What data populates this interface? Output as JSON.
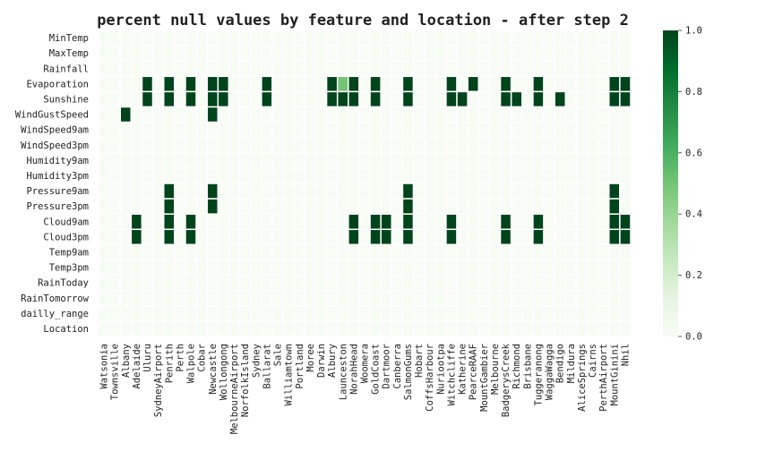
{
  "chart_data": {
    "type": "heatmap",
    "title": "percent null values by feature and location - after step 2",
    "xlabel": "",
    "ylabel": "",
    "y_categories": [
      "MinTemp",
      "MaxTemp",
      "Rainfall",
      "Evaporation",
      "Sunshine",
      "WindGustSpeed",
      "WindSpeed9am",
      "WindSpeed3pm",
      "Humidity9am",
      "Humidity3pm",
      "Pressure9am",
      "Pressure3pm",
      "Cloud9am",
      "Cloud3pm",
      "Temp9am",
      "Temp3pm",
      "RainToday",
      "RainTomorrow",
      "dailly_range",
      "Location"
    ],
    "x_categories": [
      "Watsonia",
      "Townsville",
      "Albany",
      "Adelaide",
      "Uluru",
      "SydneyAirport",
      "Penrith",
      "Perth",
      "Walpole",
      "Cobar",
      "Newcastle",
      "Wollongong",
      "MelbourneAirport",
      "NorfolkIsland",
      "Sydney",
      "Ballarat",
      "Sale",
      "Williamtown",
      "Portland",
      "Moree",
      "Darwin",
      "Albury",
      "Launceston",
      "NorahHead",
      "Woomera",
      "GoldCoast",
      "Dartmoor",
      "Canberra",
      "SalmonGums",
      "Hobart",
      "CoffsHarbour",
      "Nuriootpa",
      "Witchcliffe",
      "Katherine",
      "PearceRAAF",
      "MountGambier",
      "Melbourne",
      "BadgerysCreek",
      "Richmond",
      "Brisbane",
      "Tuggeranong",
      "WaggaWagga",
      "Bendigo",
      "Mildura",
      "AliceSprings",
      "Cairns",
      "PerthAirport",
      "MountGinini",
      "Nhil"
    ],
    "x_tick_labels": [
      "Watsonia",
      "Townsville",
      "Albany",
      "Adelaide",
      "Uluru",
      "SydneyAirport",
      "Penrith",
      "Perth",
      "Walpole",
      "Cobar",
      "Newcastle",
      "Wollongong",
      "MelbourneAirport",
      "NorfolkIsland",
      "Sydney",
      "Ballarat",
      "Sale",
      "Williamtown",
      "Portland",
      "Moree",
      "Darwin",
      "Albury",
      "Launceston",
      "NorahHead",
      "Woomera",
      "GoldCoast",
      "Dartmoor",
      "Canberra",
      "SalmonGums",
      "Hobart",
      "CoffsHarbour",
      "Nuriootpa",
      "Witchcliffe",
      "Katherine",
      "PearceRAAF",
      "MountGambier",
      "Melbourne",
      "BadgerysCreek",
      "Richmond",
      "Brisbane",
      "Tuggeranong",
      "WaggaWagga",
      "Bendigo",
      "Mildura",
      "AliceSprings",
      "Cairns",
      "PerthAirport",
      "MountGinini",
      "Nhil"
    ],
    "values": [
      [
        0,
        0,
        0,
        0,
        0,
        0,
        0,
        0,
        0,
        0,
        0,
        0,
        0,
        0,
        0,
        0,
        0,
        0,
        0,
        0,
        0,
        0,
        0,
        0,
        0,
        0,
        0,
        0,
        0,
        0,
        0,
        0,
        0,
        0,
        0,
        0,
        0,
        0,
        0,
        0,
        0,
        0,
        0,
        0,
        0,
        0,
        0,
        0,
        0
      ],
      [
        0,
        0,
        0,
        0,
        0,
        0,
        0,
        0,
        0,
        0,
        0,
        0,
        0,
        0,
        0,
        0,
        0,
        0,
        0,
        0,
        0,
        0,
        0,
        0,
        0,
        0,
        0,
        0,
        0,
        0,
        0,
        0,
        0,
        0,
        0,
        0,
        0,
        0,
        0,
        0,
        0,
        0,
        0,
        0,
        0,
        0,
        0,
        0,
        0
      ],
      [
        0,
        0,
        0,
        0,
        0,
        0,
        0,
        0,
        0,
        0,
        0,
        0,
        0,
        0,
        0,
        0,
        0,
        0,
        0,
        0,
        0,
        0,
        0,
        0,
        0,
        0,
        0,
        0,
        0,
        0,
        0,
        0,
        0,
        0,
        0,
        0,
        0,
        0,
        0,
        0,
        0,
        0,
        0,
        0,
        0,
        0,
        0,
        0,
        0
      ],
      [
        0,
        0,
        0,
        0,
        1,
        0,
        1,
        0,
        1,
        0,
        1,
        1,
        0,
        0,
        0,
        1,
        0,
        0,
        0,
        0,
        0,
        1,
        0.5,
        1,
        0,
        1,
        0,
        0,
        1,
        0,
        0,
        0,
        1,
        0,
        1,
        0,
        0,
        1,
        0,
        0,
        1,
        0,
        0,
        0,
        0,
        0,
        0,
        1,
        1
      ],
      [
        0,
        0,
        0,
        0,
        1,
        0,
        1,
        0,
        1,
        0,
        1,
        1,
        0,
        0,
        0,
        1,
        0,
        0,
        0,
        0,
        0,
        1,
        1,
        1,
        0,
        1,
        0,
        0,
        1,
        0,
        0,
        0,
        1,
        1,
        0,
        0,
        0,
        1,
        1,
        0,
        1,
        0,
        1,
        0,
        0,
        0,
        0,
        1,
        1
      ],
      [
        0,
        0,
        1,
        0,
        0,
        0,
        0,
        0,
        0,
        0,
        1,
        0,
        0,
        0,
        0,
        0,
        0,
        0,
        0,
        0,
        0,
        0,
        0,
        0,
        0,
        0,
        0,
        0,
        0,
        0,
        0,
        0,
        0,
        0,
        0,
        0,
        0,
        0,
        0,
        0,
        0,
        0,
        0,
        0,
        0,
        0,
        0,
        0,
        0
      ],
      [
        0,
        0,
        0,
        0,
        0,
        0,
        0,
        0,
        0,
        0,
        0,
        0,
        0,
        0,
        0,
        0,
        0,
        0,
        0,
        0,
        0,
        0,
        0,
        0,
        0,
        0,
        0,
        0,
        0,
        0,
        0,
        0,
        0,
        0,
        0,
        0,
        0,
        0,
        0,
        0,
        0,
        0,
        0,
        0,
        0,
        0,
        0,
        0,
        0
      ],
      [
        0,
        0,
        0,
        0,
        0,
        0,
        0,
        0,
        0,
        0,
        0,
        0,
        0,
        0,
        0,
        0,
        0,
        0,
        0,
        0,
        0,
        0,
        0,
        0,
        0,
        0,
        0,
        0,
        0,
        0,
        0,
        0,
        0,
        0,
        0,
        0,
        0,
        0,
        0,
        0,
        0,
        0,
        0,
        0,
        0,
        0,
        0,
        0,
        0
      ],
      [
        0,
        0,
        0,
        0,
        0,
        0,
        0,
        0,
        0,
        0,
        0,
        0,
        0,
        0,
        0,
        0,
        0,
        0,
        0,
        0,
        0,
        0,
        0,
        0,
        0,
        0,
        0,
        0,
        0,
        0,
        0,
        0,
        0,
        0,
        0,
        0,
        0,
        0,
        0,
        0,
        0,
        0,
        0,
        0,
        0,
        0,
        0,
        0,
        0
      ],
      [
        0,
        0,
        0,
        0,
        0,
        0,
        0,
        0,
        0,
        0,
        0,
        0,
        0,
        0,
        0,
        0,
        0,
        0,
        0,
        0,
        0,
        0,
        0,
        0,
        0,
        0,
        0,
        0,
        0,
        0,
        0,
        0,
        0,
        0,
        0,
        0,
        0,
        0,
        0,
        0,
        0,
        0,
        0,
        0,
        0,
        0,
        0,
        0,
        0
      ],
      [
        0,
        0,
        0,
        0,
        0,
        0,
        1,
        0,
        0,
        0,
        1,
        0,
        0,
        0,
        0,
        0,
        0,
        0,
        0,
        0,
        0,
        0,
        0,
        0,
        0,
        0,
        0,
        0,
        1,
        0,
        0,
        0,
        0,
        0,
        0,
        0,
        0,
        0,
        0,
        0,
        0,
        0,
        0,
        0,
        0,
        0,
        0,
        1,
        0
      ],
      [
        0,
        0,
        0,
        0,
        0,
        0,
        1,
        0,
        0,
        0,
        1,
        0,
        0,
        0,
        0,
        0,
        0,
        0,
        0,
        0,
        0,
        0,
        0,
        0,
        0,
        0,
        0,
        0,
        1,
        0,
        0,
        0,
        0,
        0,
        0,
        0,
        0,
        0,
        0,
        0,
        0,
        0,
        0,
        0,
        0,
        0,
        0,
        1,
        0
      ],
      [
        0,
        0,
        0,
        1,
        0,
        0,
        1,
        0,
        1,
        0,
        0,
        0,
        0,
        0,
        0,
        0,
        0,
        0,
        0,
        0,
        0,
        0,
        0,
        1,
        0,
        1,
        1,
        0,
        1,
        0,
        0,
        0,
        1,
        0,
        0,
        0,
        0,
        1,
        0,
        0,
        1,
        0,
        0,
        0,
        0,
        0,
        0,
        1,
        1
      ],
      [
        0,
        0,
        0,
        1,
        0,
        0,
        1,
        0,
        1,
        0,
        0,
        0,
        0,
        0,
        0,
        0,
        0,
        0,
        0,
        0,
        0,
        0,
        0,
        1,
        0,
        1,
        1,
        0,
        1,
        0,
        0,
        0,
        1,
        0,
        0,
        0,
        0,
        1,
        0,
        0,
        1,
        0,
        0,
        0,
        0,
        0,
        0,
        1,
        1
      ],
      [
        0,
        0,
        0,
        0,
        0,
        0,
        0,
        0,
        0,
        0,
        0,
        0,
        0,
        0,
        0,
        0,
        0,
        0,
        0,
        0,
        0,
        0,
        0,
        0,
        0,
        0,
        0,
        0,
        0,
        0,
        0,
        0,
        0,
        0,
        0,
        0,
        0,
        0,
        0,
        0,
        0,
        0,
        0,
        0,
        0,
        0,
        0,
        0,
        0
      ],
      [
        0,
        0,
        0,
        0,
        0,
        0,
        0,
        0,
        0,
        0,
        0,
        0,
        0,
        0,
        0,
        0,
        0,
        0,
        0,
        0,
        0,
        0,
        0,
        0,
        0,
        0,
        0,
        0,
        0,
        0,
        0,
        0,
        0,
        0,
        0,
        0,
        0,
        0,
        0,
        0,
        0,
        0,
        0,
        0,
        0,
        0,
        0,
        0,
        0
      ],
      [
        0,
        0,
        0,
        0,
        0,
        0,
        0,
        0,
        0,
        0,
        0,
        0,
        0,
        0,
        0,
        0,
        0,
        0,
        0,
        0,
        0,
        0,
        0,
        0,
        0,
        0,
        0,
        0,
        0,
        0,
        0,
        0,
        0,
        0,
        0,
        0,
        0,
        0,
        0,
        0,
        0,
        0,
        0,
        0,
        0,
        0,
        0,
        0,
        0
      ],
      [
        0,
        0,
        0,
        0,
        0,
        0,
        0,
        0,
        0,
        0,
        0,
        0,
        0,
        0,
        0,
        0,
        0,
        0,
        0,
        0,
        0,
        0,
        0,
        0,
        0,
        0,
        0,
        0,
        0,
        0,
        0,
        0,
        0,
        0,
        0,
        0,
        0,
        0,
        0,
        0,
        0,
        0,
        0,
        0,
        0,
        0,
        0,
        0,
        0
      ],
      [
        0,
        0,
        0,
        0,
        0,
        0,
        0,
        0,
        0,
        0,
        0,
        0,
        0,
        0,
        0,
        0,
        0,
        0,
        0,
        0,
        0,
        0,
        0,
        0,
        0,
        0,
        0,
        0,
        0,
        0,
        0,
        0,
        0,
        0,
        0,
        0,
        0,
        0,
        0,
        0,
        0,
        0,
        0,
        0,
        0,
        0,
        0,
        0,
        0
      ],
      [
        0,
        0,
        0,
        0,
        0,
        0,
        0,
        0,
        0,
        0,
        0,
        0,
        0,
        0,
        0,
        0,
        0,
        0,
        0,
        0,
        0,
        0,
        0,
        0,
        0,
        0,
        0,
        0,
        0,
        0,
        0,
        0,
        0,
        0,
        0,
        0,
        0,
        0,
        0,
        0,
        0,
        0,
        0,
        0,
        0,
        0,
        0,
        0,
        0
      ]
    ],
    "vmin": 0,
    "vmax": 1,
    "colorbar_ticks": [
      "0.0",
      "0.2",
      "0.4",
      "0.6",
      "0.8",
      "1.0"
    ],
    "colormap": "Greens",
    "color_low": "#f7fcf5",
    "color_high": "#00441b",
    "cell_border_color": "#ffffff",
    "grid": false,
    "legend": "colorbar-right"
  }
}
